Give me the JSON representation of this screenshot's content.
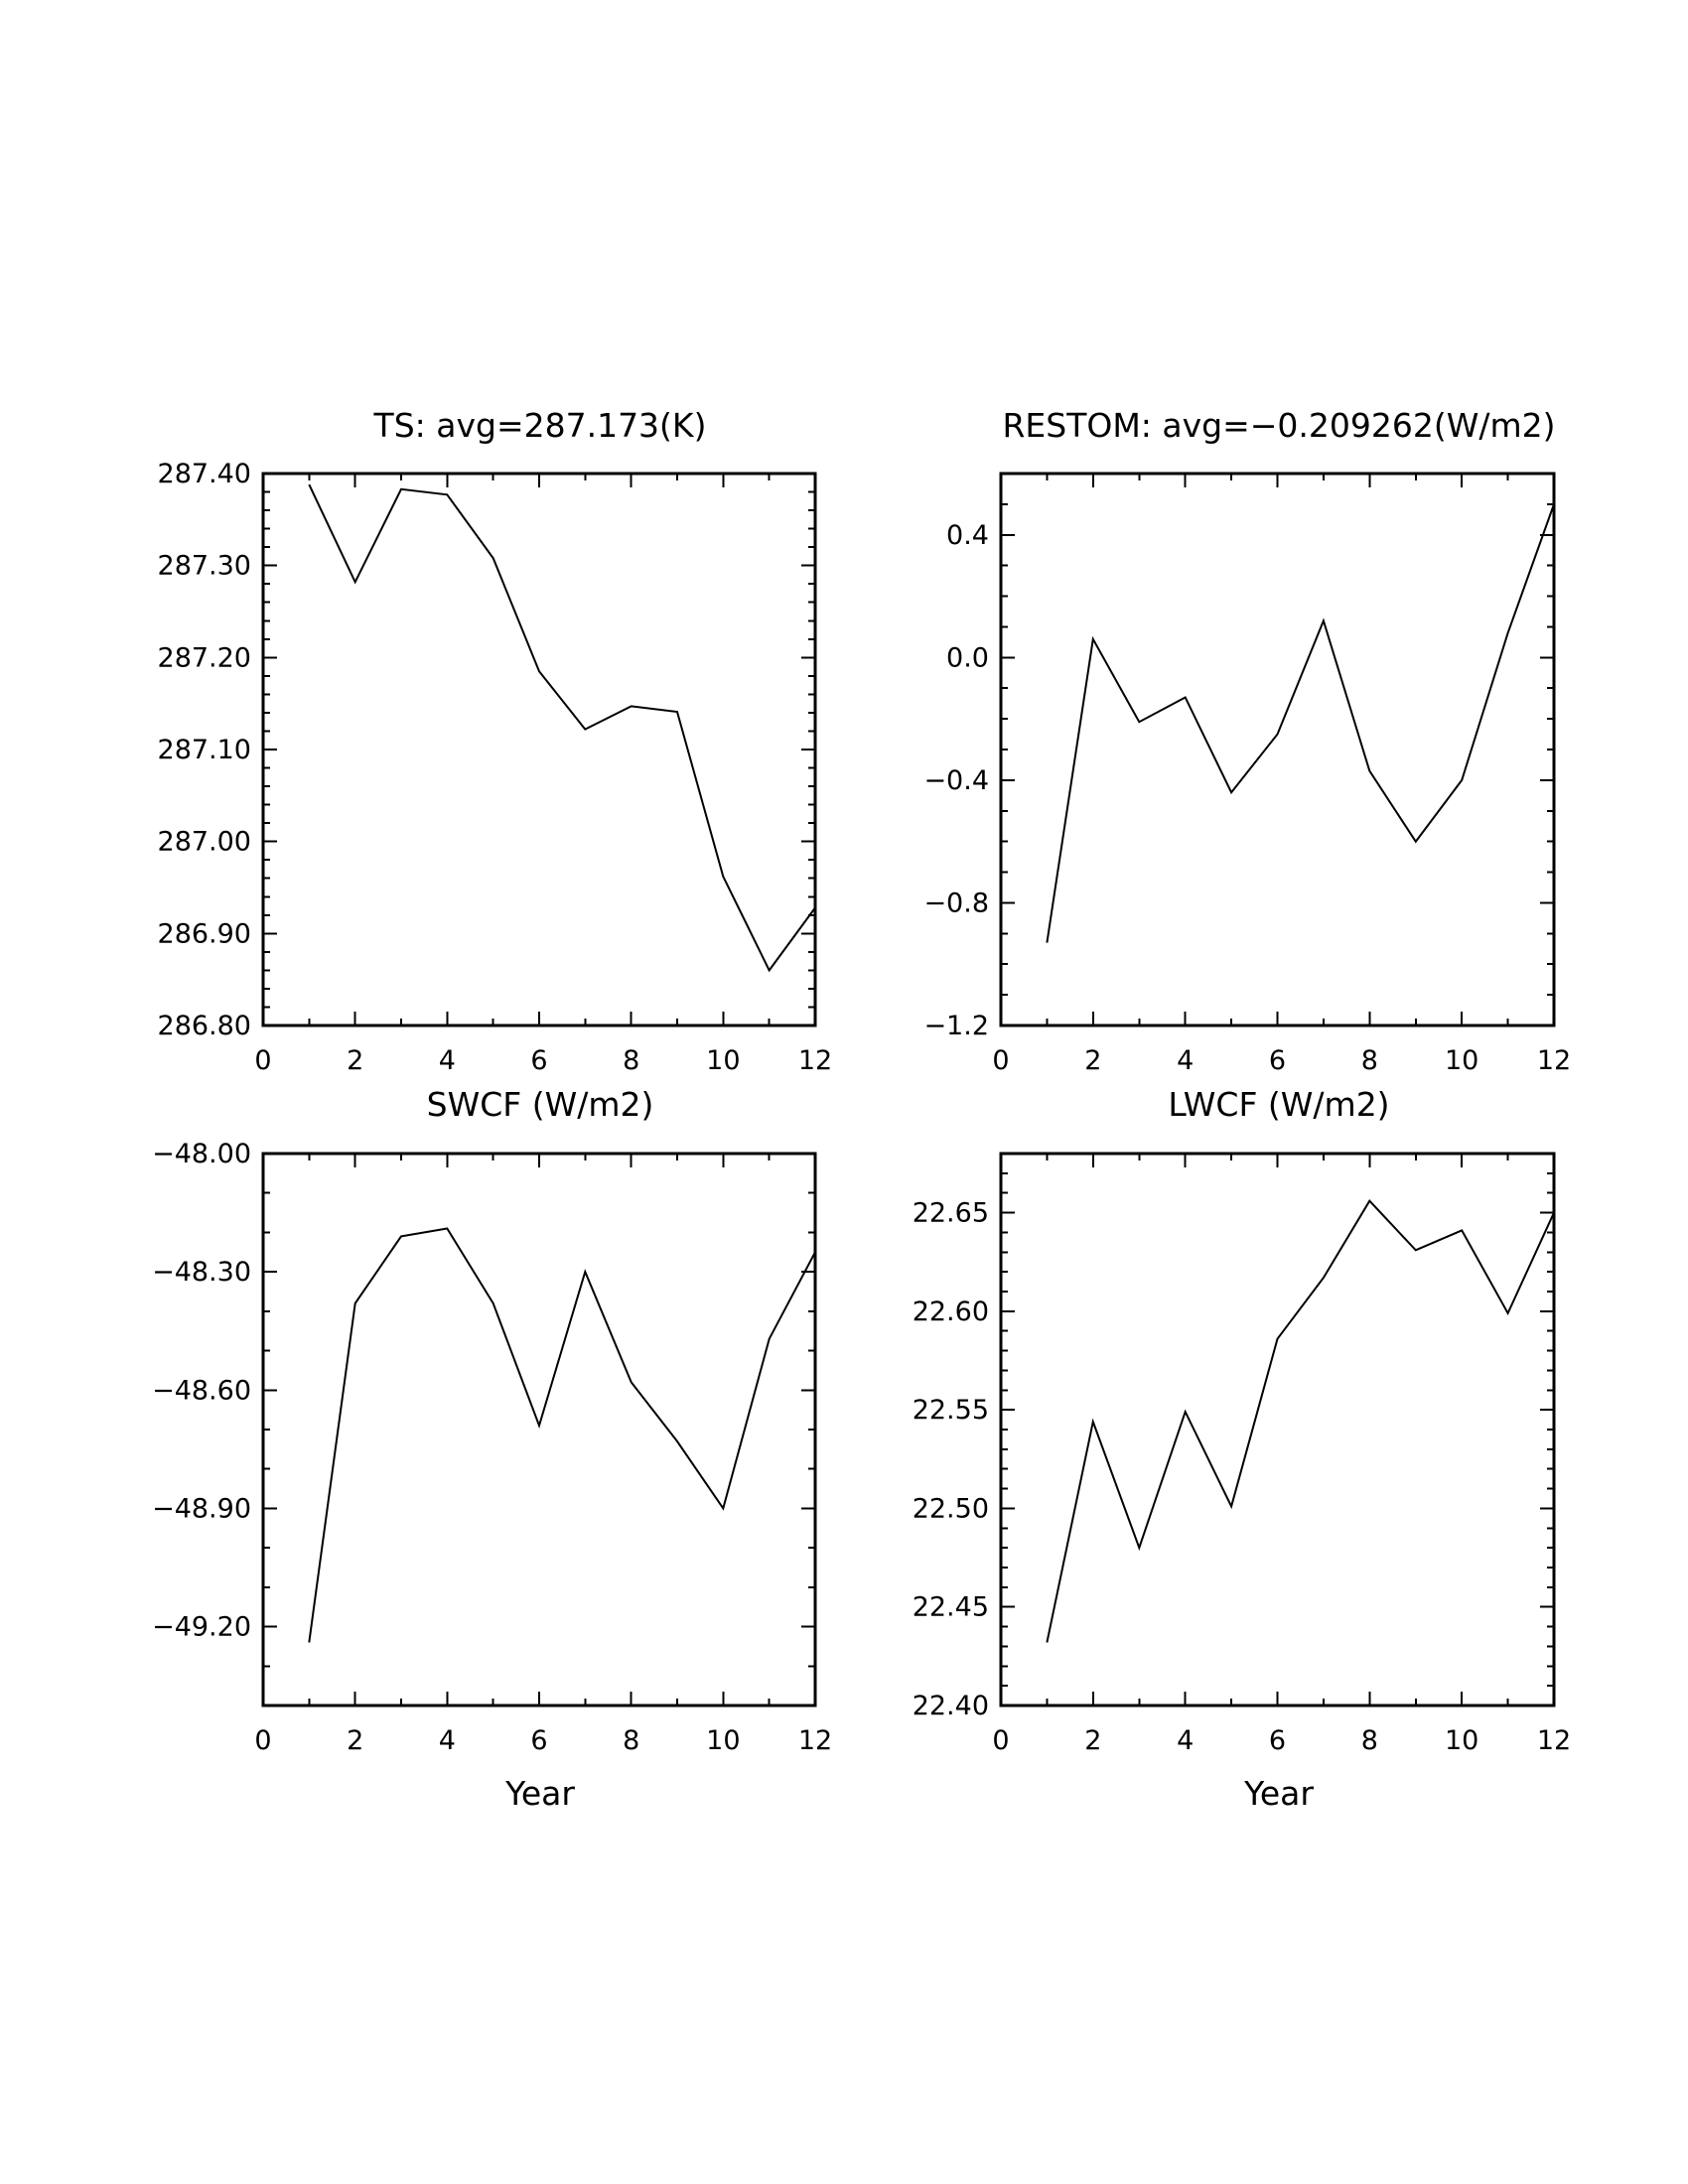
{
  "chart_data": [
    {
      "type": "line",
      "title": "TS: avg=287.173(K)",
      "xlabel": "",
      "ylabel": "",
      "x": [
        1,
        2,
        3,
        4,
        5,
        6,
        7,
        8,
        9,
        10,
        11,
        12
      ],
      "series": [
        {
          "values": [
            287.388,
            287.282,
            287.383,
            287.377,
            287.308,
            287.185,
            287.122,
            287.147,
            287.141,
            286.962,
            286.86,
            286.928
          ]
        }
      ],
      "xlim": [
        0,
        12
      ],
      "ylim": [
        286.8,
        287.4
      ],
      "xticks": [
        0,
        2,
        4,
        6,
        8,
        10,
        12
      ],
      "xtick_labels": [
        "0",
        "2",
        "4",
        "6",
        "8",
        "10",
        "12"
      ],
      "yticks": [
        286.8,
        286.9,
        287.0,
        287.1,
        287.2,
        287.3,
        287.4
      ],
      "ytick_labels": [
        "286.80",
        "286.90",
        "287.00",
        "287.10",
        "287.20",
        "287.30",
        "287.40"
      ],
      "yminor": 0.02,
      "grid": false,
      "line_color": "#000000"
    },
    {
      "type": "line",
      "title": "RESTOM: avg=−0.209262(W/m2)",
      "xlabel": "",
      "ylabel": "",
      "x": [
        1,
        2,
        3,
        4,
        5,
        6,
        7,
        8,
        9,
        10,
        11,
        12
      ],
      "series": [
        {
          "values": [
            -0.93,
            0.06,
            -0.21,
            -0.13,
            -0.44,
            -0.25,
            0.12,
            -0.37,
            -0.6,
            -0.4,
            0.08,
            0.5
          ]
        }
      ],
      "xlim": [
        0,
        12
      ],
      "ylim": [
        -1.2,
        0.6
      ],
      "xticks": [
        0,
        2,
        4,
        6,
        8,
        10,
        12
      ],
      "xtick_labels": [
        "0",
        "2",
        "4",
        "6",
        "8",
        "10",
        "12"
      ],
      "yticks": [
        -1.2,
        -0.8,
        -0.4,
        0.0,
        0.4
      ],
      "ytick_labels": [
        "−1.2",
        "−0.8",
        "−0.4",
        "0.0",
        "0.4"
      ],
      "yminor": 0.1,
      "grid": false,
      "line_color": "#000000"
    },
    {
      "type": "line",
      "title": "SWCF (W/m2)",
      "xlabel": "Year",
      "ylabel": "",
      "x": [
        1,
        2,
        3,
        4,
        5,
        6,
        7,
        8,
        9,
        10,
        11,
        12
      ],
      "series": [
        {
          "values": [
            -49.24,
            -48.38,
            -48.21,
            -48.19,
            -48.38,
            -48.69,
            -48.3,
            -48.58,
            -48.73,
            -48.9,
            -48.47,
            -48.25
          ]
        }
      ],
      "xlim": [
        0,
        12
      ],
      "ylim": [
        -49.4,
        -48.0
      ],
      "xticks": [
        0,
        2,
        4,
        6,
        8,
        10,
        12
      ],
      "xtick_labels": [
        "0",
        "2",
        "4",
        "6",
        "8",
        "10",
        "12"
      ],
      "yticks": [
        -49.2,
        -48.9,
        -48.6,
        -48.3,
        -48.0
      ],
      "ytick_labels": [
        "−49.20",
        "−48.90",
        "−48.60",
        "−48.30",
        "−48.00"
      ],
      "yminor": 0.1,
      "grid": false,
      "line_color": "#000000"
    },
    {
      "type": "line",
      "title": "LWCF (W/m2)",
      "xlabel": "Year",
      "ylabel": "",
      "x": [
        1,
        2,
        3,
        4,
        5,
        6,
        7,
        8,
        9,
        10,
        11,
        12
      ],
      "series": [
        {
          "values": [
            22.432,
            22.544,
            22.48,
            22.549,
            22.501,
            22.586,
            22.617,
            22.656,
            22.631,
            22.641,
            22.599,
            22.65
          ]
        }
      ],
      "xlim": [
        0,
        12
      ],
      "ylim": [
        22.4,
        22.68
      ],
      "xticks": [
        0,
        2,
        4,
        6,
        8,
        10,
        12
      ],
      "xtick_labels": [
        "0",
        "2",
        "4",
        "6",
        "8",
        "10",
        "12"
      ],
      "yticks": [
        22.4,
        22.45,
        22.5,
        22.55,
        22.6,
        22.65
      ],
      "ytick_labels": [
        "22.40",
        "22.45",
        "22.50",
        "22.55",
        "22.60",
        "22.65"
      ],
      "yminor": 0.01,
      "grid": false,
      "line_color": "#000000"
    }
  ]
}
